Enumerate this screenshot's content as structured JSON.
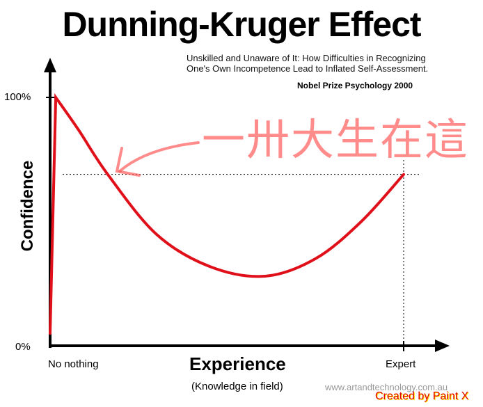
{
  "title": "Dunning-Kruger Effect",
  "subtitle_line1": "Unskilled and Unaware of It: How Difficulties in Recognizing",
  "subtitle_line2": "One's Own Incompetence Lead to Inflated Self-Assessment.",
  "note": "Nobel Prize Psychology  2000",
  "handwritten_annotation": "一卅大生在這",
  "watermark": "www.artandtechnology.com.au",
  "credit": "Created by Paint X",
  "chart_data": {
    "type": "line",
    "ylabel": "Confidence",
    "xlabel": "Experience",
    "xlabel_sub": "(Knowledge in field)",
    "y_ticks": [
      "100%",
      "0%"
    ],
    "x_ticks": [
      "No nothing",
      "Expert"
    ],
    "ylim": [
      0,
      100
    ],
    "xlim": [
      0,
      1
    ],
    "grid": false,
    "line_color": "#e0101a",
    "reference_level": 69,
    "points": [
      [
        0,
        5
      ],
      [
        0.016,
        100
      ],
      [
        0.08,
        87
      ],
      [
        0.163,
        69
      ],
      [
        0.3,
        45
      ],
      [
        0.45,
        32
      ],
      [
        0.606,
        28
      ],
      [
        0.75,
        35
      ],
      [
        0.88,
        50
      ],
      [
        1,
        69
      ]
    ]
  }
}
